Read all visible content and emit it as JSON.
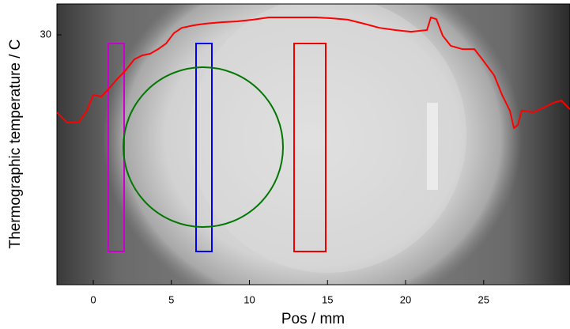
{
  "chart_data": {
    "type": "line",
    "xlabel": "Pos / mm",
    "ylabel": "Thermographic temperature / C",
    "x": [
      -2.33,
      -1.67,
      -0.91,
      -0.41,
      0,
      0.51,
      1.01,
      1.52,
      2.03,
      2.63,
      3.14,
      3.65,
      4.15,
      4.66,
      5.16,
      5.67,
      6.43,
      7.19,
      8.2,
      9.22,
      10.23,
      11.24,
      12.25,
      13.27,
      14.28,
      15.29,
      16.3,
      17.32,
      18.33,
      19.34,
      20.35,
      21.37,
      21.62,
      21.97,
      22.38,
      22.89,
      23.65,
      24.41,
      24.91,
      25.67,
      26.18,
      26.68,
      26.94,
      27.19,
      27.44,
      28.2,
      28.96,
      29.47,
      29.97,
      30.53
    ],
    "values": [
      27.24,
      26.87,
      26.9,
      27.3,
      27.86,
      27.8,
      28.09,
      28.42,
      28.71,
      29.13,
      29.27,
      29.33,
      29.49,
      29.69,
      30.06,
      30.25,
      30.34,
      30.4,
      30.45,
      30.48,
      30.54,
      30.62,
      30.62,
      30.62,
      30.62,
      30.59,
      30.54,
      30.4,
      30.25,
      30.17,
      30.11,
      30.17,
      30.62,
      30.56,
      29.97,
      29.61,
      29.49,
      29.49,
      29.13,
      28.56,
      27.86,
      27.3,
      26.68,
      26.79,
      27.3,
      27.24,
      27.44,
      27.58,
      27.66,
      27.35
    ],
    "color": "#ff0000",
    "xlim": [
      -2.33,
      30.53
    ],
    "ylim": [
      21.1,
      31.1
    ],
    "xticks": [
      0,
      5,
      10,
      15,
      20,
      25
    ],
    "yticks": [
      30
    ]
  }
}
